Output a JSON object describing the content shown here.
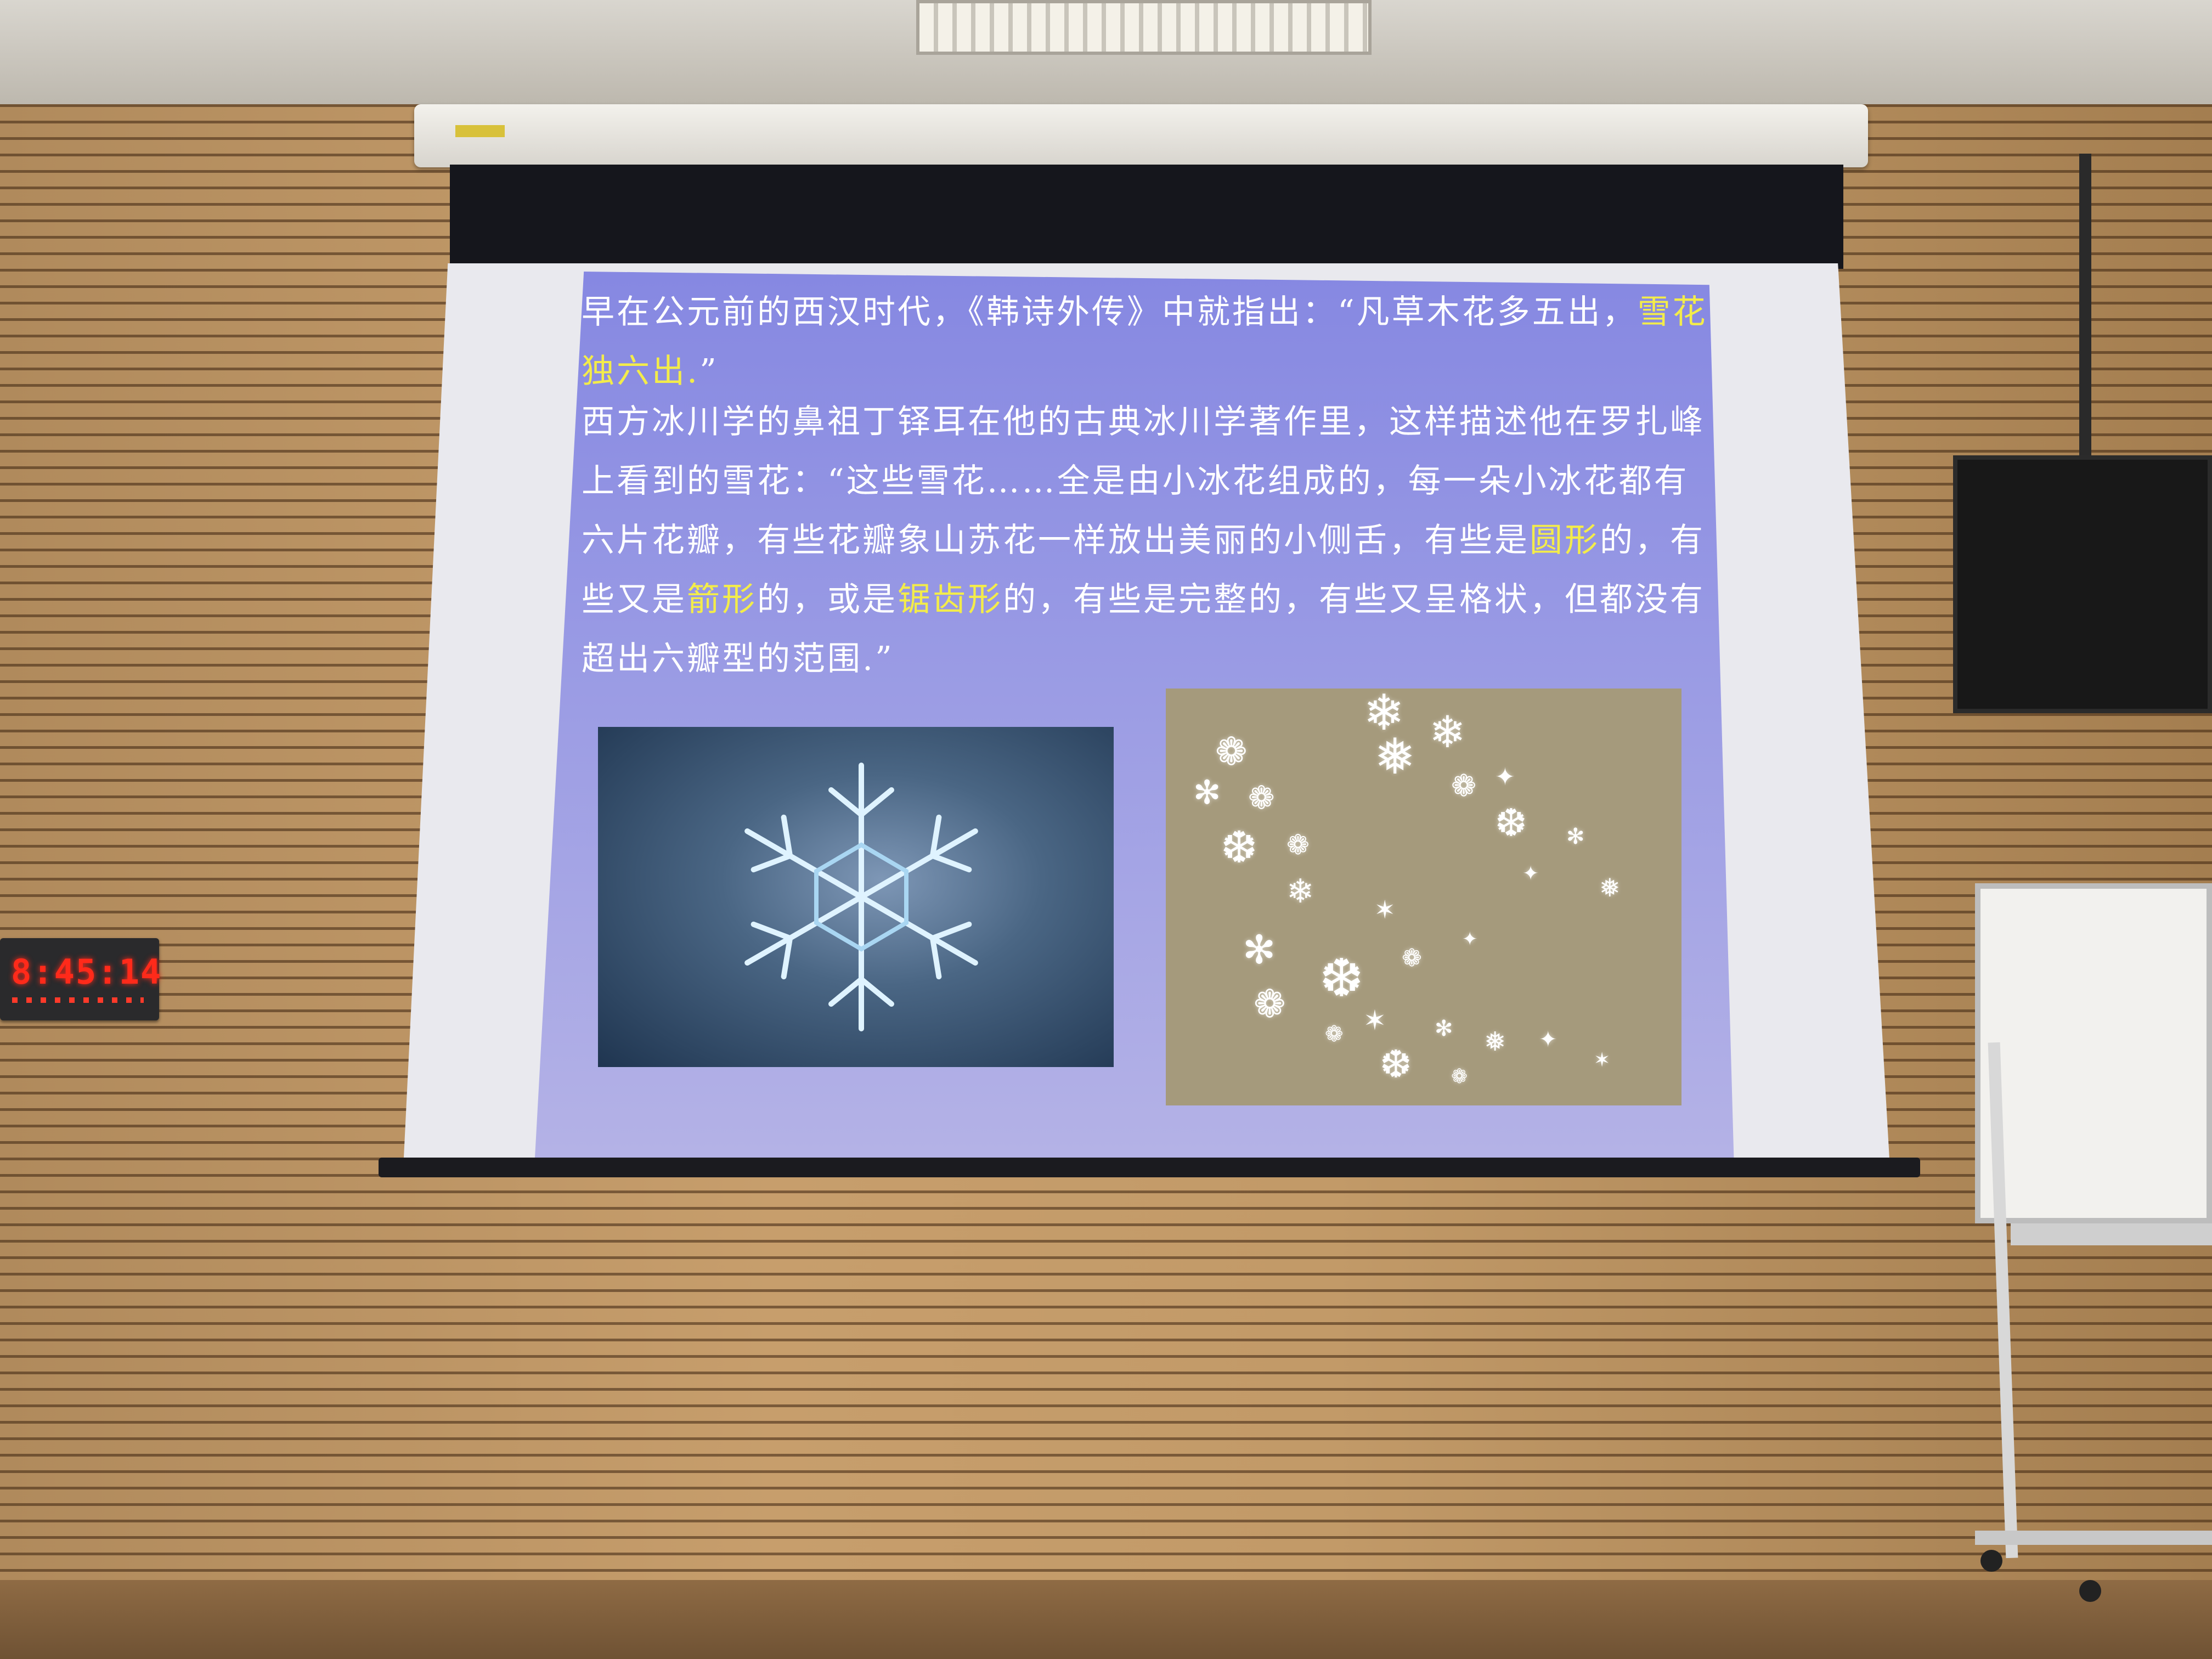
{
  "scene": {
    "clock": {
      "time": "8:45:14"
    },
    "slide": {
      "bullets": [
        {
          "parts": [
            {
              "text": "早在公元前的西汉时代，《韩诗外传》中就指出：“凡草木花多五出，",
              "highlight": false
            },
            {
              "text": "雪花独六出.",
              "highlight": true
            },
            {
              "text": "”",
              "highlight": false
            }
          ]
        },
        {
          "parts": [
            {
              "text": "西方冰川学的鼻祖丁铎耳在他的古典冰川学著作里，这样描述他在罗扎峰上看到的雪花：“这些雪花……全是由小冰花组成的，每一朵小冰花都有六片花瓣，有些花瓣象山苏花一样放出美丽的小侧舌，有些是",
              "highlight": false
            },
            {
              "text": "圆形",
              "highlight": true
            },
            {
              "text": "的，有些又是",
              "highlight": false
            },
            {
              "text": "箭形",
              "highlight": true
            },
            {
              "text": "的，或是",
              "highlight": false
            },
            {
              "text": "锯齿形",
              "highlight": true
            },
            {
              "text": "的，有些是完整的，有些又呈格状，但都没有超出六瓣型的范围.”",
              "highlight": false
            }
          ]
        }
      ]
    },
    "colors": {
      "slide_text": "#ffffff",
      "highlight": "#f3ec4a",
      "clock_digits": "#ff2a1a"
    },
    "icons": [
      "snowflake-icon"
    ]
  }
}
